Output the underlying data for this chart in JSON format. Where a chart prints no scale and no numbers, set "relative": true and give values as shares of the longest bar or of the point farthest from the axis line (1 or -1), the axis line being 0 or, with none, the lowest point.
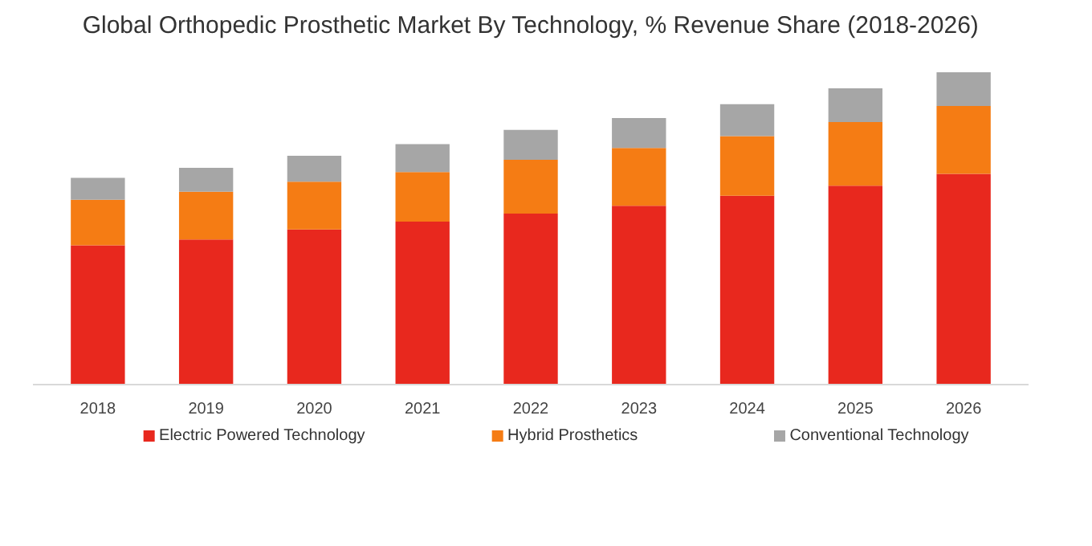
{
  "chart_data": {
    "type": "bar",
    "title": "Global Orthopedic Prosthetic Market By Technology, % Revenue Share (2018-2026)",
    "categories": [
      "2018",
      "2019",
      "2020",
      "2021",
      "2022",
      "2023",
      "2024",
      "2025",
      "2026"
    ],
    "stacked": true,
    "relative": true,
    "legend": "bottom",
    "grid": false,
    "series": [
      {
        "name": "Electric Powered Technology",
        "color": "#e8281e",
        "values": [
          0.446,
          0.465,
          0.497,
          0.522,
          0.548,
          0.573,
          0.605,
          0.637,
          0.675
        ]
      },
      {
        "name": "Hybrid Prosthetics",
        "color": "#f57c14",
        "values": [
          0.146,
          0.153,
          0.153,
          0.159,
          0.172,
          0.185,
          0.191,
          0.204,
          0.217
        ]
      },
      {
        "name": "Conventional Technology",
        "color": "#a6a6a6",
        "values": [
          0.07,
          0.076,
          0.083,
          0.089,
          0.096,
          0.096,
          0.102,
          0.108,
          0.108
        ]
      }
    ]
  }
}
